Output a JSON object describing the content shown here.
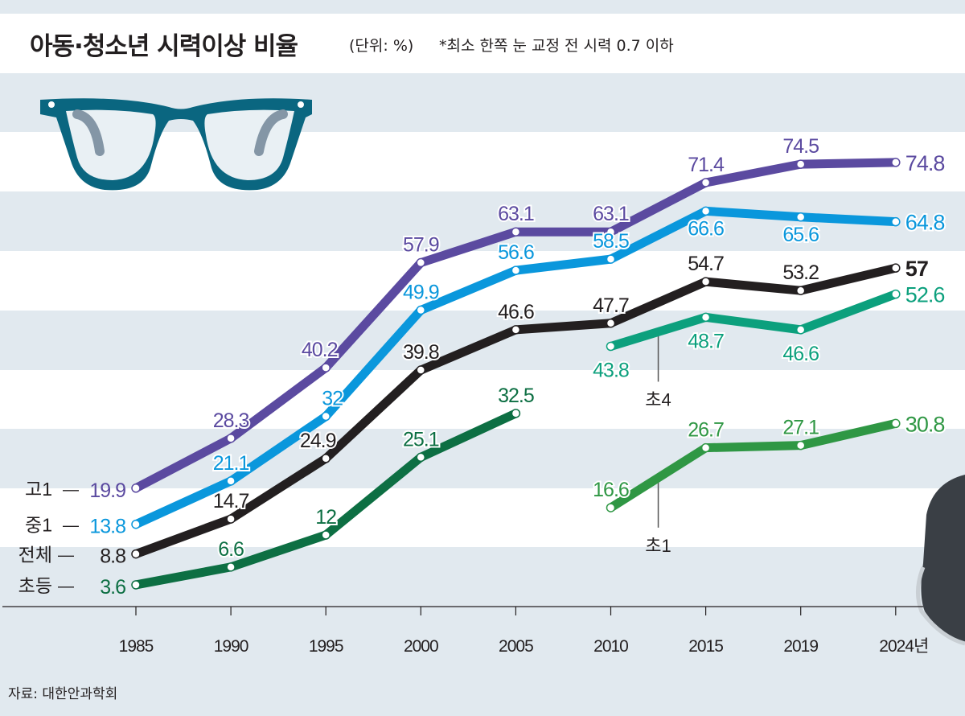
{
  "header": {
    "title": "아동·청소년 시력이상 비율",
    "unit": "(단위: %)",
    "note": "*최소 한쪽 눈 교정 전 시력 0.7 이하"
  },
  "source": "자료: 대한안과학회",
  "icons": [
    "glasses-icon",
    "stool-icon"
  ],
  "colors": {
    "background": "#e1e9ef",
    "band": "#ffffff",
    "high1": "#5b4aa0",
    "middle1": "#0a97dc",
    "total": "#231f20",
    "elementary": "#0d6f43",
    "grade4": "#0ca07d",
    "grade1": "#2f9744",
    "glasses": "#0a6680"
  },
  "chart_data": {
    "type": "line",
    "title": "아동·청소년 시력이상 비율",
    "unit": "%",
    "x": [
      "1985",
      "1990",
      "1995",
      "2000",
      "2005",
      "2010",
      "2015",
      "2019",
      "2024년"
    ],
    "ylim": [
      0,
      80
    ],
    "grid": false,
    "series": [
      {
        "key": "high1",
        "name": "고1",
        "values": [
          19.9,
          28.3,
          40.2,
          57.9,
          63.1,
          63.1,
          71.4,
          74.5,
          74.8
        ],
        "labels": [
          "19.9",
          "28.3",
          "40.2",
          "57.9",
          "63.1",
          "63.1",
          "71.4",
          "74.5",
          "74.8"
        ]
      },
      {
        "key": "middle1",
        "name": "중1",
        "values": [
          13.8,
          21.1,
          32,
          49.9,
          56.6,
          58.5,
          66.6,
          65.6,
          64.8
        ],
        "labels": [
          "13.8",
          "21.1",
          "32",
          "49.9",
          "56.6",
          "58.5",
          "66.6",
          "65.6",
          "64.8"
        ]
      },
      {
        "key": "total",
        "name": "전체",
        "values": [
          8.8,
          14.7,
          24.9,
          39.8,
          46.6,
          47.7,
          54.7,
          53.2,
          57
        ],
        "labels": [
          "8.8",
          "14.7",
          "24.9",
          "39.8",
          "46.6",
          "47.7",
          "54.7",
          "53.2",
          "57"
        ]
      },
      {
        "key": "elementary",
        "name": "초등",
        "values": [
          3.6,
          6.6,
          12,
          25.1,
          32.5,
          null,
          null,
          null,
          null
        ],
        "labels": [
          "3.6",
          "6.6",
          "12",
          "25.1",
          "32.5",
          null,
          null,
          null,
          null
        ]
      },
      {
        "key": "grade4",
        "name": "초4",
        "values": [
          null,
          null,
          null,
          null,
          null,
          43.8,
          48.7,
          46.6,
          52.6
        ],
        "labels": [
          null,
          null,
          null,
          null,
          null,
          "43.8",
          "48.7",
          "46.6",
          "52.6"
        ]
      },
      {
        "key": "grade1",
        "name": "초1",
        "values": [
          null,
          null,
          null,
          null,
          null,
          16.6,
          26.7,
          27.1,
          30.8
        ],
        "labels": [
          null,
          null,
          null,
          null,
          null,
          "16.6",
          "26.7",
          "27.1",
          "30.8"
        ]
      }
    ],
    "legend_left": [
      {
        "series": "high1",
        "name": "고1",
        "dash": "—"
      },
      {
        "series": "middle1",
        "name": "중1",
        "dash": "—"
      },
      {
        "series": "total",
        "name": "전체",
        "dash": "—"
      },
      {
        "series": "elementary",
        "name": "초등",
        "dash": "—"
      }
    ],
    "callouts": [
      {
        "series": "grade4",
        "name": "초4"
      },
      {
        "series": "grade1",
        "name": "초1"
      }
    ]
  }
}
